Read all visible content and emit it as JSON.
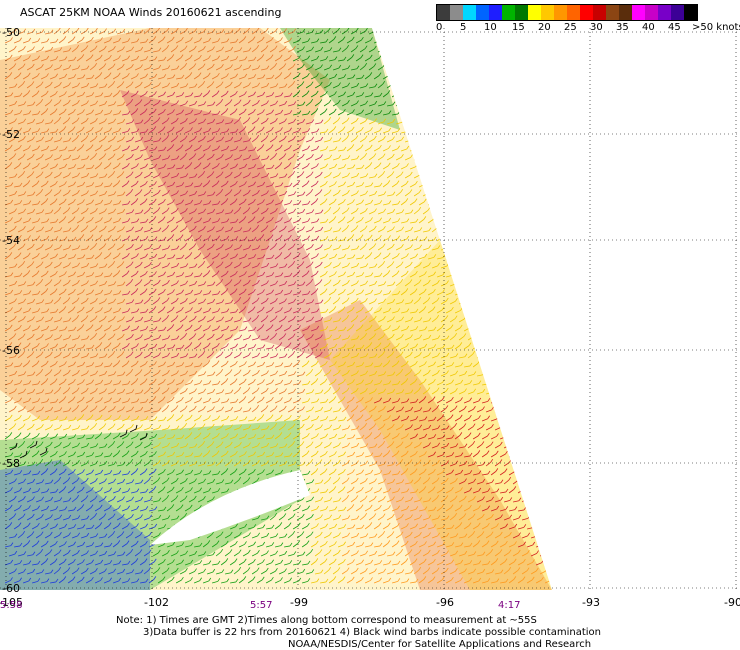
{
  "title": "ASCAT 25KM NOAA Winds 20160621 ascending",
  "legend": {
    "colors": [
      "#3c3c3c",
      "#8c8c8c",
      "#00d7ff",
      "#0064ff",
      "#1e1eff",
      "#00b400",
      "#007800",
      "#ffff00",
      "#ffc800",
      "#ff9600",
      "#ff6400",
      "#ff0000",
      "#c80000",
      "#8b4513",
      "#5a2d0c",
      "#ff00ff",
      "#c800c8",
      "#7800c8",
      "#3c0096",
      "#000000"
    ],
    "labels": [
      "0",
      "5",
      "10",
      "15",
      "20",
      "25",
      "30",
      "35",
      "40",
      "45",
      ">50 knots"
    ]
  },
  "lat_labels": [
    "-50",
    "-52",
    "-54",
    "-56",
    "-58",
    "-60"
  ],
  "lon_labels": [
    "-105",
    "-102",
    "-99",
    "-96",
    "-93",
    "-90"
  ],
  "times": [
    "5:58",
    "5:57",
    "4:17"
  ],
  "notes": {
    "line1": "Note: 1) Times are GMT 2)Times along bottom correspond to measurement at ~55S",
    "line2": "3)Data buffer is 22 hrs from 20160621 4) Black wind barbs indicate possible contamination",
    "line3": "NOAA/NESDIS/Center for Satellite Applications and Research"
  }
}
